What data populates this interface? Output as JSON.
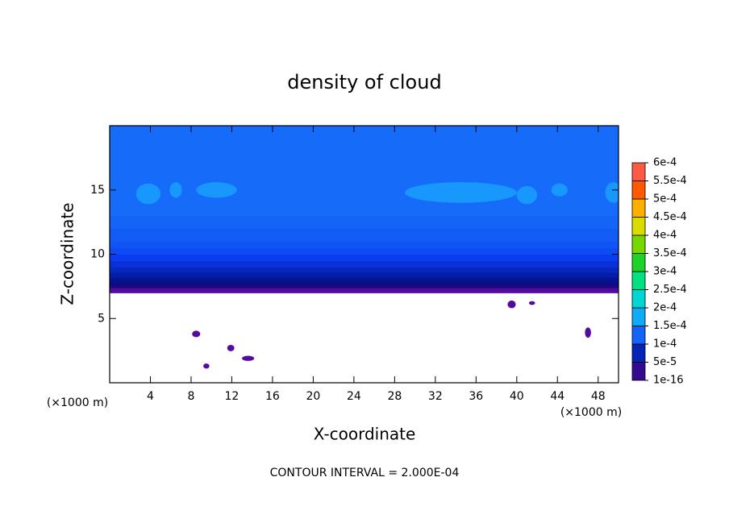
{
  "chart_data": {
    "type": "contour",
    "title": "density of cloud",
    "x_label": "X-coordinate",
    "y_label": "Z-coordinate",
    "x_unit": "(×1000 m)",
    "footer": "CONTOUR INTERVAL = 2.000E-04",
    "xlim": [
      0,
      50
    ],
    "ylim": [
      0,
      20
    ],
    "xticks": [
      4,
      8,
      12,
      16,
      20,
      24,
      28,
      32,
      36,
      40,
      44,
      48
    ],
    "yticks": [
      5,
      10,
      15
    ],
    "profile": {
      "z_edges": [
        7.0,
        7.4,
        7.8,
        8.2,
        8.6,
        9.0,
        9.5,
        10.0,
        10.5,
        11.0,
        12.0,
        13.0,
        20.0
      ],
      "values": [
        1e-05,
        4e-05,
        6e-05,
        7e-05,
        8e-05,
        9e-05,
        0.0001,
        0.00011,
        0.000115,
        0.00012,
        0.000125,
        0.00013
      ]
    },
    "patches": [
      {
        "x": 3.8,
        "z": 14.7,
        "rx": 1.2,
        "rz": 0.8,
        "value": 0.00016
      },
      {
        "x": 6.5,
        "z": 15.0,
        "rx": 0.6,
        "rz": 0.6,
        "value": 0.00016
      },
      {
        "x": 10.5,
        "z": 15.0,
        "rx": 2.0,
        "rz": 0.6,
        "value": 0.00016
      },
      {
        "x": 34.5,
        "z": 14.8,
        "rx": 5.5,
        "rz": 0.8,
        "value": 0.00016
      },
      {
        "x": 41.0,
        "z": 14.6,
        "rx": 1.0,
        "rz": 0.7,
        "value": 0.00016
      },
      {
        "x": 44.2,
        "z": 15.0,
        "rx": 0.8,
        "rz": 0.5,
        "value": 0.00016
      },
      {
        "x": 49.5,
        "z": 14.8,
        "rx": 0.8,
        "rz": 0.8,
        "value": 0.00016
      },
      {
        "x": 8.5,
        "z": 3.8,
        "rx": 0.4,
        "rz": 0.25,
        "value": 1e-05
      },
      {
        "x": 11.9,
        "z": 2.7,
        "rx": 0.35,
        "rz": 0.25,
        "value": 1e-05
      },
      {
        "x": 13.6,
        "z": 1.9,
        "rx": 0.6,
        "rz": 0.2,
        "value": 1e-05
      },
      {
        "x": 9.5,
        "z": 1.3,
        "rx": 0.3,
        "rz": 0.2,
        "value": 1e-05
      },
      {
        "x": 47.0,
        "z": 3.9,
        "rx": 0.3,
        "rz": 0.4,
        "value": 1e-05
      },
      {
        "x": 39.5,
        "z": 6.1,
        "rx": 0.4,
        "rz": 0.3,
        "value": 1e-05
      },
      {
        "x": 41.5,
        "z": 6.2,
        "rx": 0.3,
        "rz": 0.15,
        "value": 1e-05
      }
    ],
    "colorbar": {
      "ticks": [
        {
          "value": 1e-16,
          "label": "1e-16"
        },
        {
          "value": 5e-05,
          "label": "5e-5"
        },
        {
          "value": 0.0001,
          "label": "1e-4"
        },
        {
          "value": 0.00015,
          "label": "1.5e-4"
        },
        {
          "value": 0.0002,
          "label": "2e-4"
        },
        {
          "value": 0.00025,
          "label": "2.5e-4"
        },
        {
          "value": 0.0003,
          "label": "3e-4"
        },
        {
          "value": 0.00035,
          "label": "3.5e-4"
        },
        {
          "value": 0.0004,
          "label": "4e-4"
        },
        {
          "value": 0.00045,
          "label": "4.5e-4"
        },
        {
          "value": 0.0005,
          "label": "5e-4"
        },
        {
          "value": 0.00055,
          "label": "5.5e-4"
        },
        {
          "value": 0.0006,
          "label": "6e-4"
        }
      ],
      "colors": [
        "#6a0aa8",
        "#000a78",
        "#0a3cf0",
        "#1e8cff",
        "#00c8f0",
        "#00e6b4",
        "#00dc50",
        "#3cc800",
        "#b4e600",
        "#ffd200",
        "#ff8c00",
        "#ff2800",
        "#ff8c8c"
      ]
    }
  }
}
